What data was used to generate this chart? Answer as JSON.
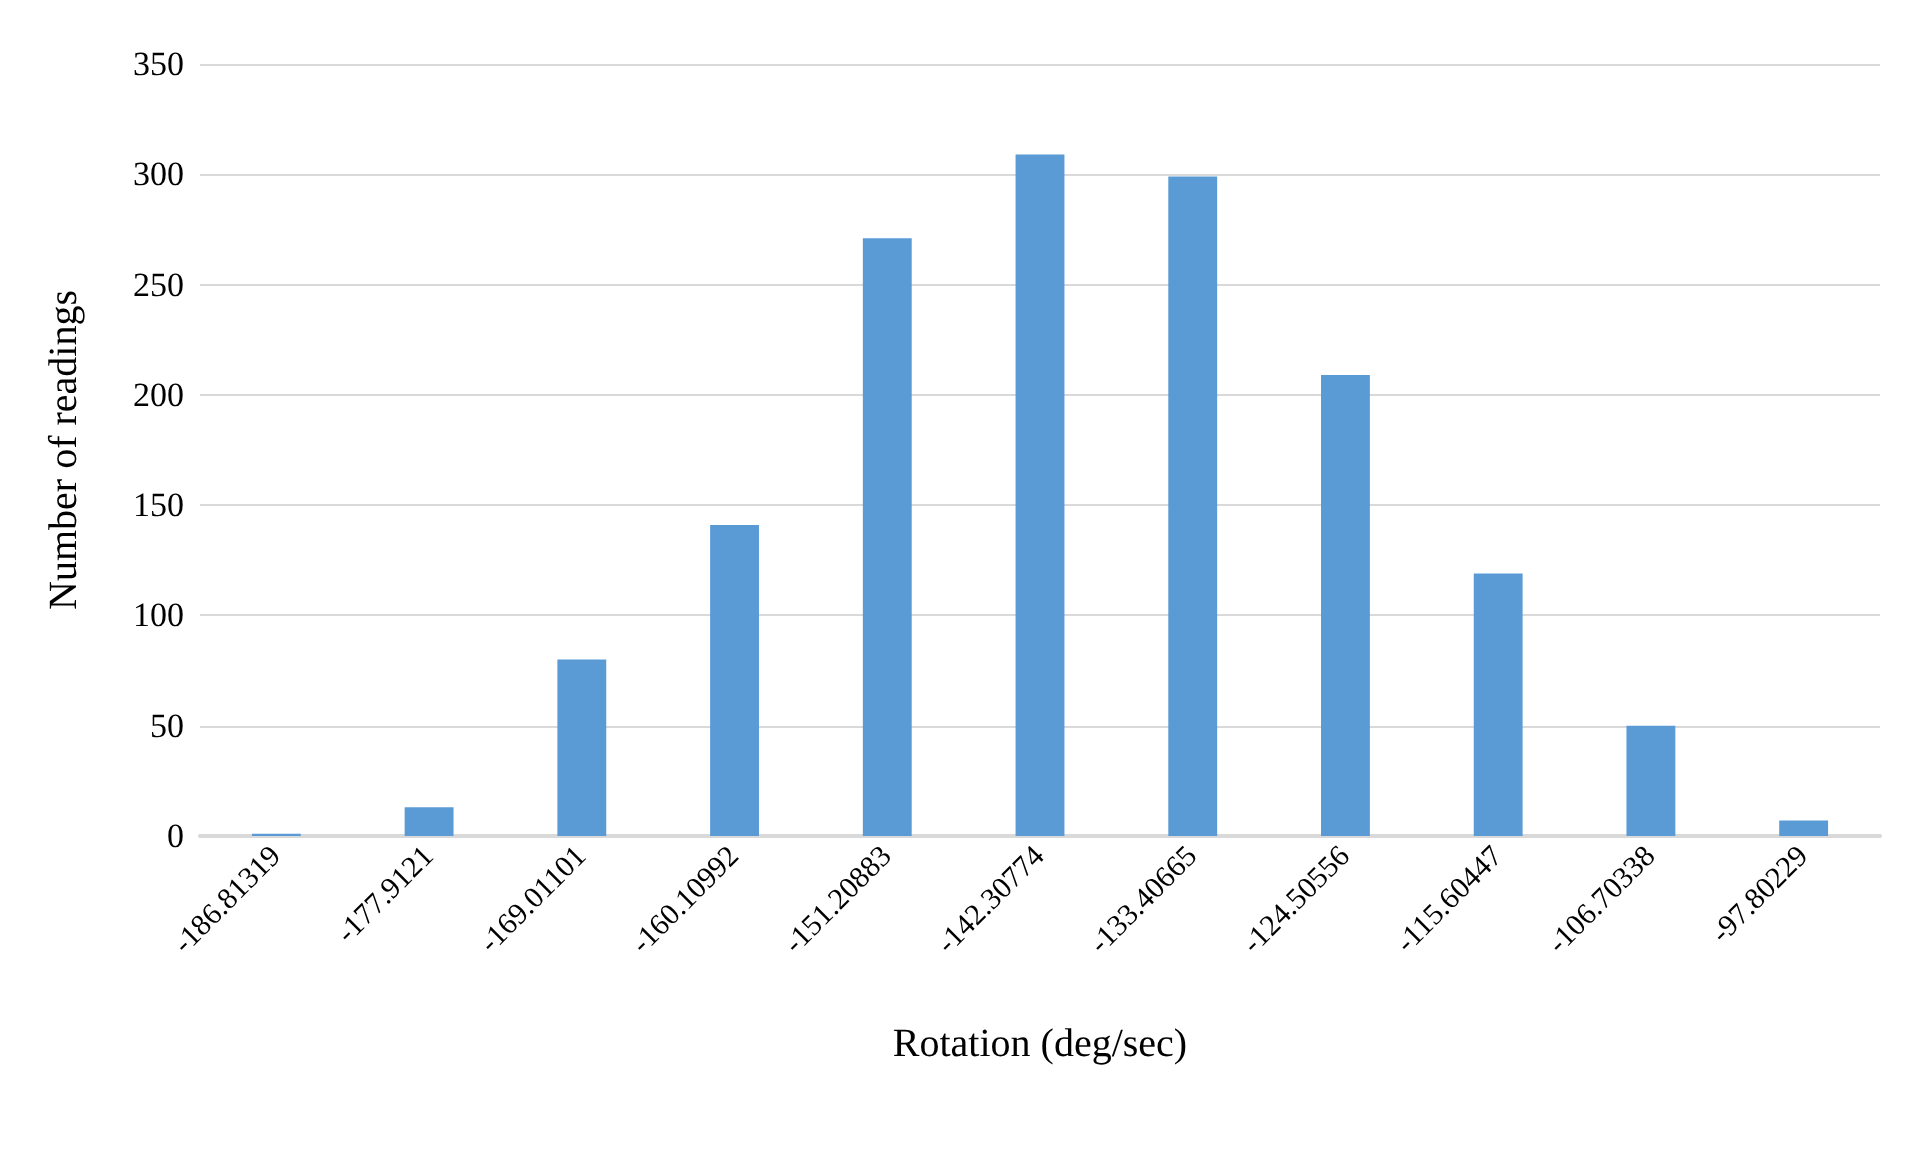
{
  "chart_data": {
    "type": "bar",
    "xlabel": "Rotation (deg/sec)",
    "ylabel": "Number of readings",
    "categories": [
      "-186.81319",
      "-177.9121",
      "-169.01101",
      "-160.10992",
      "-151.20883",
      "-142.30774",
      "-133.40665",
      "-124.50556",
      "-115.60447",
      "-106.70338",
      "-97.80229"
    ],
    "values": [
      1,
      13,
      80,
      141,
      271,
      309,
      299,
      209,
      119,
      50,
      7
    ],
    "color": "#5b9bd5",
    "ylim": [
      0,
      350
    ],
    "yticks": [
      0,
      50,
      100,
      150,
      200,
      250,
      300,
      350
    ],
    "grid": "y"
  }
}
